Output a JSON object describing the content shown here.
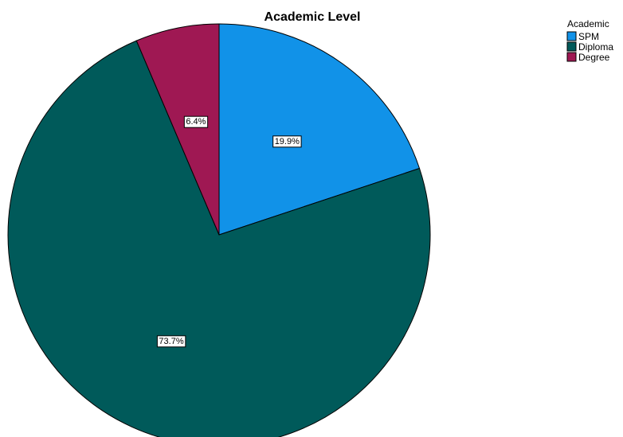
{
  "chart_data": {
    "type": "pie",
    "title": "Academic Level",
    "legend_title": "Academic",
    "legend_position": "top-right",
    "categories": [
      "SPM",
      "Diploma",
      "Degree"
    ],
    "values": [
      19.9,
      73.7,
      6.4
    ],
    "labels": [
      "19.9%",
      "73.7%",
      "6.4%"
    ],
    "colors": [
      "#1192e8",
      "#005a5a",
      "#9f1853"
    ],
    "start_angle_deg": 0,
    "direction": "clockwise"
  }
}
